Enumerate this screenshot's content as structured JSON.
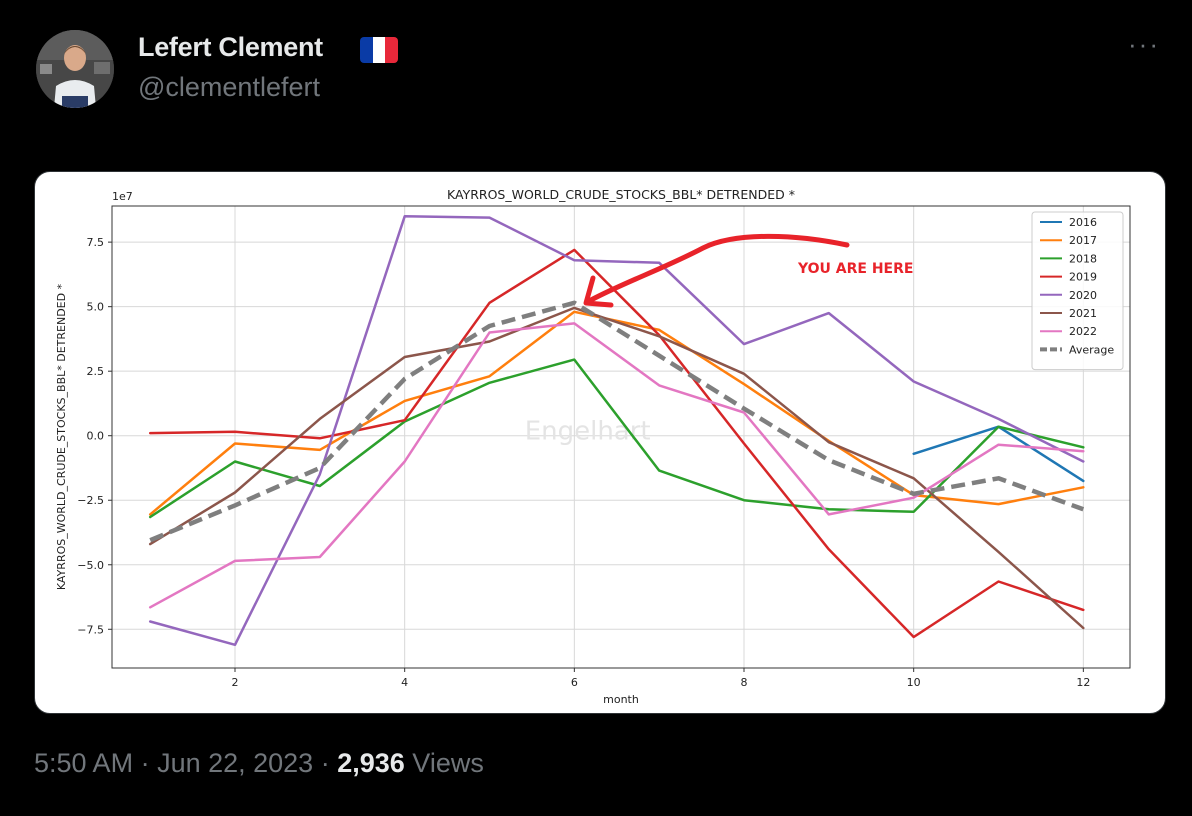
{
  "author": {
    "name": "Lefert Clement",
    "handle": "@clementlefert",
    "flag_colors": [
      "#0a3ba6",
      "#ffffff",
      "#e8283a"
    ]
  },
  "icons": {
    "more": "more-options-icon",
    "flag": "france-flag-icon",
    "arrow": "red-arrow-annotation"
  },
  "more_glyph": "···",
  "meta": {
    "time": "5:50 AM",
    "separator": " · ",
    "date": "Jun 22, 2023",
    "views_count": "2,936",
    "views_label": "Views"
  },
  "chart_data": {
    "type": "line",
    "title": "KAYRROS_WORLD_CRUDE_STOCKS_BBL* DETRENDED *",
    "xlabel": "month",
    "ylabel": "KAYRROS_WORLD_CRUDE_STOCKS_BBL* DETRENDED *",
    "y_offset_label": "1e7",
    "xlim": [
      0.55,
      12.55
    ],
    "ylim": [
      -9.0,
      8.9
    ],
    "x_ticks": [
      2,
      4,
      6,
      8,
      10,
      12
    ],
    "y_ticks": [
      -7.5,
      -5.0,
      -2.5,
      0.0,
      2.5,
      5.0,
      7.5
    ],
    "y_tick_labels": [
      "−7.5",
      "−5.0",
      "−2.5",
      "0.0",
      "2.5",
      "5.0",
      "7.5"
    ],
    "grid": true,
    "legend_position": "top-right",
    "watermark": "Engelhart",
    "annotation": {
      "text": "YOU ARE HERE",
      "color": "#e8232a"
    },
    "series": [
      {
        "name": "2016",
        "color": "#1f77b4",
        "dashed": false,
        "x": [
          10,
          11,
          12
        ],
        "values": [
          -0.7,
          0.35,
          -1.75
        ]
      },
      {
        "name": "2017",
        "color": "#ff7f0e",
        "dashed": false,
        "x": [
          1,
          2,
          3,
          4,
          5,
          6,
          7,
          8,
          9,
          10,
          11,
          12
        ],
        "values": [
          -3.05,
          -0.3,
          -0.55,
          1.35,
          2.3,
          4.8,
          4.1,
          2.0,
          -0.2,
          -2.3,
          -2.65,
          -2.0
        ]
      },
      {
        "name": "2018",
        "color": "#2ca02c",
        "dashed": false,
        "x": [
          1,
          2,
          3,
          4,
          5,
          6,
          7,
          8,
          9,
          10,
          11,
          12
        ],
        "values": [
          -3.15,
          -1.0,
          -1.95,
          0.55,
          2.05,
          2.95,
          -1.35,
          -2.5,
          -2.85,
          -2.95,
          0.35,
          -0.45
        ]
      },
      {
        "name": "2019",
        "color": "#d62728",
        "dashed": false,
        "x": [
          1,
          2,
          3,
          4,
          5,
          6,
          7,
          8,
          9,
          10,
          11,
          12
        ],
        "values": [
          0.1,
          0.15,
          -0.1,
          0.6,
          5.15,
          7.2,
          3.9,
          -0.3,
          -4.4,
          -7.8,
          -5.65,
          -6.75
        ]
      },
      {
        "name": "2020",
        "color": "#9467bd",
        "dashed": false,
        "x": [
          1,
          2,
          3,
          4,
          5,
          6,
          7,
          8,
          9,
          10,
          11,
          12
        ],
        "values": [
          -7.2,
          -8.1,
          -1.5,
          8.5,
          8.45,
          6.8,
          6.7,
          3.55,
          4.75,
          2.1,
          0.65,
          -1.0
        ]
      },
      {
        "name": "2021",
        "color": "#8c564b",
        "dashed": false,
        "x": [
          1,
          2,
          3,
          4,
          5,
          6,
          7,
          8,
          9,
          10,
          11,
          12
        ],
        "values": [
          -4.2,
          -2.2,
          0.65,
          3.05,
          3.65,
          4.95,
          3.85,
          2.4,
          -0.25,
          -1.65,
          -4.5,
          -7.45
        ]
      },
      {
        "name": "2022",
        "color": "#e377c2",
        "dashed": false,
        "x": [
          1,
          2,
          3,
          4,
          5,
          6,
          7,
          8,
          9,
          10,
          11,
          12
        ],
        "values": [
          -6.65,
          -4.85,
          -4.7,
          -1.0,
          4.0,
          4.35,
          1.95,
          0.9,
          -3.05,
          -2.4,
          -0.35,
          -0.6
        ]
      },
      {
        "name": "Average",
        "color": "#7f7f7f",
        "dashed": true,
        "x": [
          1,
          2,
          3,
          4,
          5,
          6,
          7,
          8,
          9,
          10,
          11,
          12
        ],
        "values": [
          -4.05,
          -2.7,
          -1.25,
          2.2,
          4.25,
          5.15,
          3.1,
          1.05,
          -0.95,
          -2.25,
          -1.65,
          -2.85
        ]
      }
    ]
  }
}
